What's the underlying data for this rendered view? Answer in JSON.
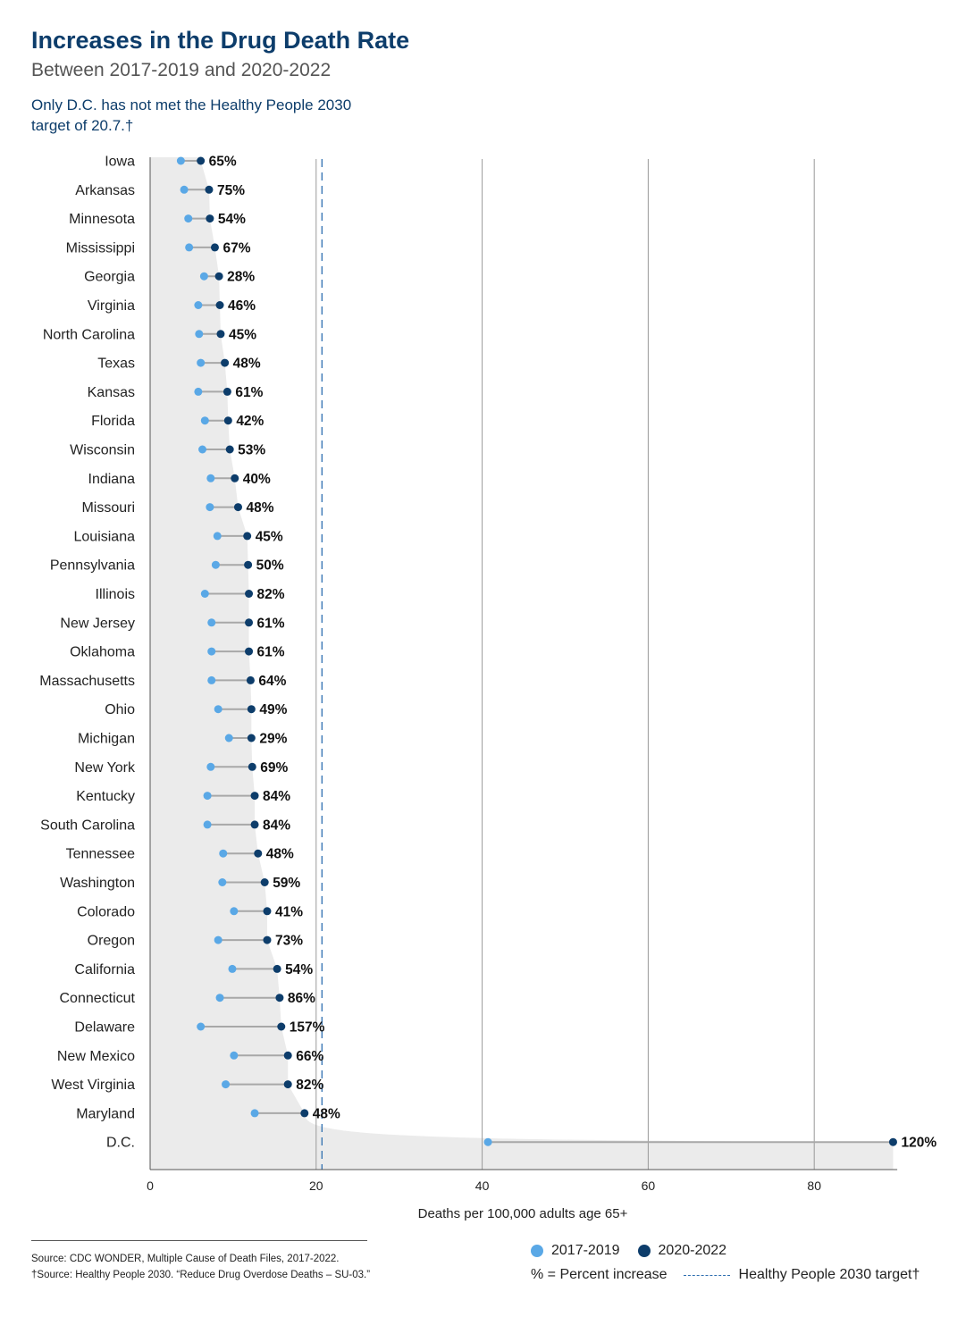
{
  "header": {
    "title": "Increases in the Drug Death Rate",
    "subtitle": "Between 2017-2019 and 2020-2022",
    "note_line1": "Only D.C. has not met the Healthy People 2030",
    "note_line2": "target of 20.7.†"
  },
  "colors": {
    "series_2017": "#5aa8e6",
    "series_2020": "#0d3d6b",
    "target": "#2f6fb0",
    "area": "#ebebeb"
  },
  "chart_data": {
    "type": "dumbbell",
    "xlabel": "Deaths per 100,000 adults age 65+",
    "xlim": [
      0,
      90
    ],
    "xticks": [
      0,
      20,
      40,
      60,
      80
    ],
    "grid": "vertical",
    "target_value": 20.7,
    "series_names": [
      "2017-2019",
      "2020-2022"
    ],
    "rows": [
      {
        "state": "Iowa",
        "v2017": 3.7,
        "v2020": 6.1,
        "pct": "65%"
      },
      {
        "state": "Arkansas",
        "v2017": 4.1,
        "v2020": 7.1,
        "pct": "75%"
      },
      {
        "state": "Minnesota",
        "v2017": 4.6,
        "v2020": 7.2,
        "pct": "54%"
      },
      {
        "state": "Mississippi",
        "v2017": 4.7,
        "v2020": 7.8,
        "pct": "67%"
      },
      {
        "state": "Georgia",
        "v2017": 6.5,
        "v2020": 8.3,
        "pct": "28%"
      },
      {
        "state": "Virginia",
        "v2017": 5.8,
        "v2020": 8.4,
        "pct": "46%"
      },
      {
        "state": "North Carolina",
        "v2017": 5.9,
        "v2020": 8.5,
        "pct": "45%"
      },
      {
        "state": "Texas",
        "v2017": 6.1,
        "v2020": 9.0,
        "pct": "48%"
      },
      {
        "state": "Kansas",
        "v2017": 5.8,
        "v2020": 9.3,
        "pct": "61%"
      },
      {
        "state": "Florida",
        "v2017": 6.6,
        "v2020": 9.4,
        "pct": "42%"
      },
      {
        "state": "Wisconsin",
        "v2017": 6.3,
        "v2020": 9.6,
        "pct": "53%"
      },
      {
        "state": "Indiana",
        "v2017": 7.3,
        "v2020": 10.2,
        "pct": "40%"
      },
      {
        "state": "Missouri",
        "v2017": 7.2,
        "v2020": 10.6,
        "pct": "48%"
      },
      {
        "state": "Louisiana",
        "v2017": 8.1,
        "v2020": 11.7,
        "pct": "45%"
      },
      {
        "state": "Pennsylvania",
        "v2017": 7.9,
        "v2020": 11.8,
        "pct": "50%"
      },
      {
        "state": "Illinois",
        "v2017": 6.6,
        "v2020": 11.9,
        "pct": "82%"
      },
      {
        "state": "New Jersey",
        "v2017": 7.4,
        "v2020": 11.9,
        "pct": "61%"
      },
      {
        "state": "Oklahoma",
        "v2017": 7.4,
        "v2020": 11.9,
        "pct": "61%"
      },
      {
        "state": "Massachusetts",
        "v2017": 7.4,
        "v2020": 12.1,
        "pct": "64%"
      },
      {
        "state": "Ohio",
        "v2017": 8.2,
        "v2020": 12.2,
        "pct": "49%"
      },
      {
        "state": "Michigan",
        "v2017": 9.5,
        "v2020": 12.2,
        "pct": "29%"
      },
      {
        "state": "New York",
        "v2017": 7.3,
        "v2020": 12.3,
        "pct": "69%"
      },
      {
        "state": "Kentucky",
        "v2017": 6.9,
        "v2020": 12.6,
        "pct": "84%"
      },
      {
        "state": "South Carolina",
        "v2017": 6.9,
        "v2020": 12.6,
        "pct": "84%"
      },
      {
        "state": "Tennessee",
        "v2017": 8.8,
        "v2020": 13.0,
        "pct": "48%"
      },
      {
        "state": "Washington",
        "v2017": 8.7,
        "v2020": 13.8,
        "pct": "59%"
      },
      {
        "state": "Colorado",
        "v2017": 10.1,
        "v2020": 14.1,
        "pct": "41%"
      },
      {
        "state": "Oregon",
        "v2017": 8.2,
        "v2020": 14.1,
        "pct": "73%"
      },
      {
        "state": "California",
        "v2017": 9.9,
        "v2020": 15.3,
        "pct": "54%"
      },
      {
        "state": "Connecticut",
        "v2017": 8.4,
        "v2020": 15.6,
        "pct": "86%"
      },
      {
        "state": "Delaware",
        "v2017": 6.1,
        "v2020": 15.8,
        "pct": "157%"
      },
      {
        "state": "New Mexico",
        "v2017": 10.1,
        "v2020": 16.6,
        "pct": "66%"
      },
      {
        "state": "West Virginia",
        "v2017": 9.1,
        "v2020": 16.6,
        "pct": "82%"
      },
      {
        "state": "Maryland",
        "v2017": 12.6,
        "v2020": 18.6,
        "pct": "48%"
      },
      {
        "state": "D.C.",
        "v2017": 40.7,
        "v2020": 89.5,
        "pct": "120%"
      }
    ]
  },
  "legend": {
    "item_2017": "2017-2019",
    "item_2020": "2020-2022",
    "pct_note": "% = Percent increase",
    "target_label": "Healthy People 2030 target†"
  },
  "sources": {
    "line1": "Source: CDC WONDER, Multiple Cause of Death Files, 2017-2022.",
    "line2": "†Source: Healthy People 2030. “Reduce Drug Overdose Deaths – SU-03.”"
  }
}
